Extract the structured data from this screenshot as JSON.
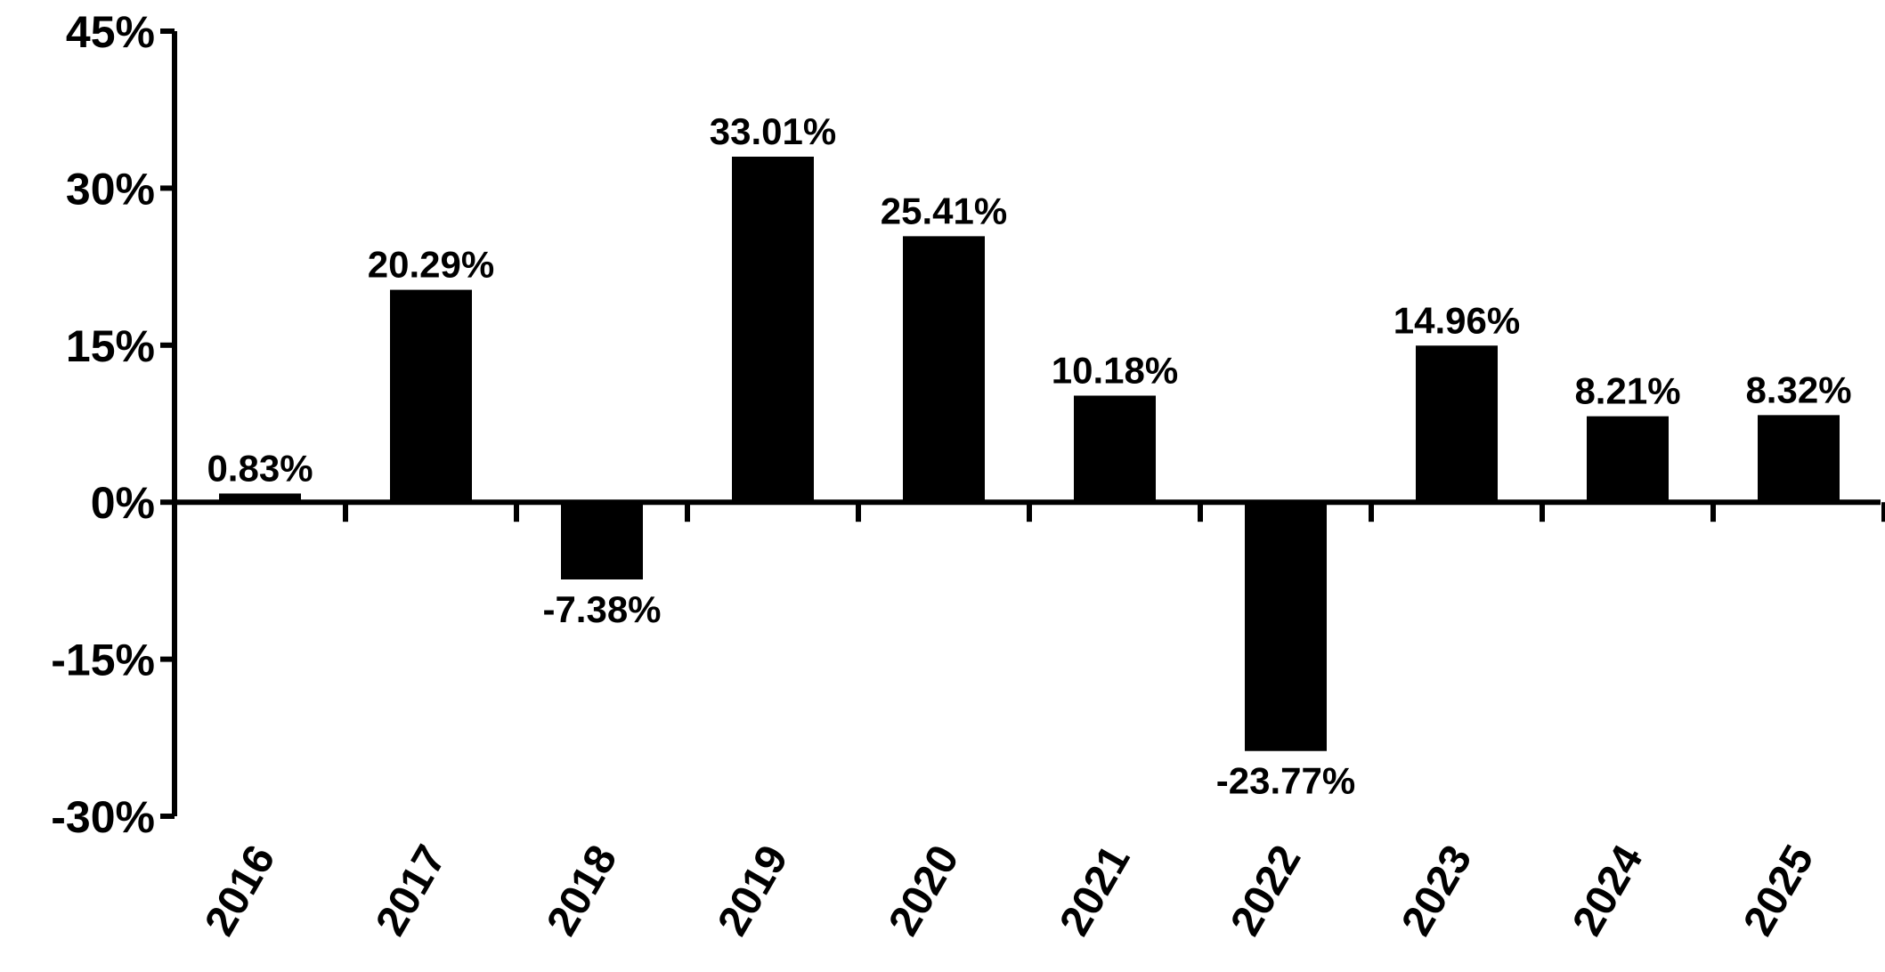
{
  "chart_data": {
    "type": "bar",
    "categories": [
      "2016",
      "2017",
      "2018",
      "2019",
      "2020",
      "2021",
      "2022",
      "2023",
      "2024",
      "2025"
    ],
    "values": [
      0.83,
      20.29,
      -7.38,
      33.01,
      25.41,
      10.18,
      -23.77,
      14.96,
      8.21,
      8.32
    ],
    "data_labels": [
      "0.83%",
      "20.29%",
      "-7.38%",
      "33.01%",
      "25.41%",
      "10.18%",
      "-23.77%",
      "14.96%",
      "8.21%",
      "8.32%"
    ],
    "yticks": [
      45,
      30,
      15,
      0,
      -15,
      -30
    ],
    "ytick_labels": [
      "45%",
      "30%",
      "15%",
      "0%",
      "-15%",
      "-30%"
    ],
    "ylim": [
      -30,
      45
    ],
    "grid": false,
    "legend": "none",
    "bar_color": "#000000",
    "axis_color": "#000000"
  }
}
